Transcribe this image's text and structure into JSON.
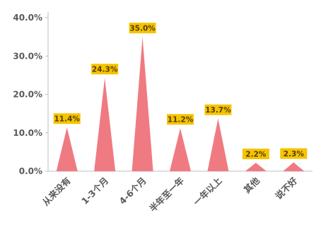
{
  "chart_data": {
    "type": "bar",
    "shape": "triangle",
    "categories": [
      "从来没有",
      "1-3个月",
      "4-6个月",
      "半年至一年",
      "一年以上",
      "其他",
      "说不好"
    ],
    "values": [
      11.4,
      24.3,
      35.0,
      11.2,
      13.7,
      2.2,
      2.3
    ],
    "value_labels": [
      "11.4%",
      "24.3%",
      "35.0%",
      "11.2%",
      "13.7%",
      "2.2%",
      "2.3%"
    ],
    "y_ticks": [
      "0.0%",
      "10.0%",
      "20.0%",
      "30.0%",
      "40.0%"
    ],
    "ylim": [
      0,
      40
    ],
    "grid": false,
    "legend": "none",
    "colors": {
      "bar": "#f07a82",
      "label_bg": "#f5c400",
      "axis": "#bfbfbf",
      "text": "#595959"
    }
  }
}
